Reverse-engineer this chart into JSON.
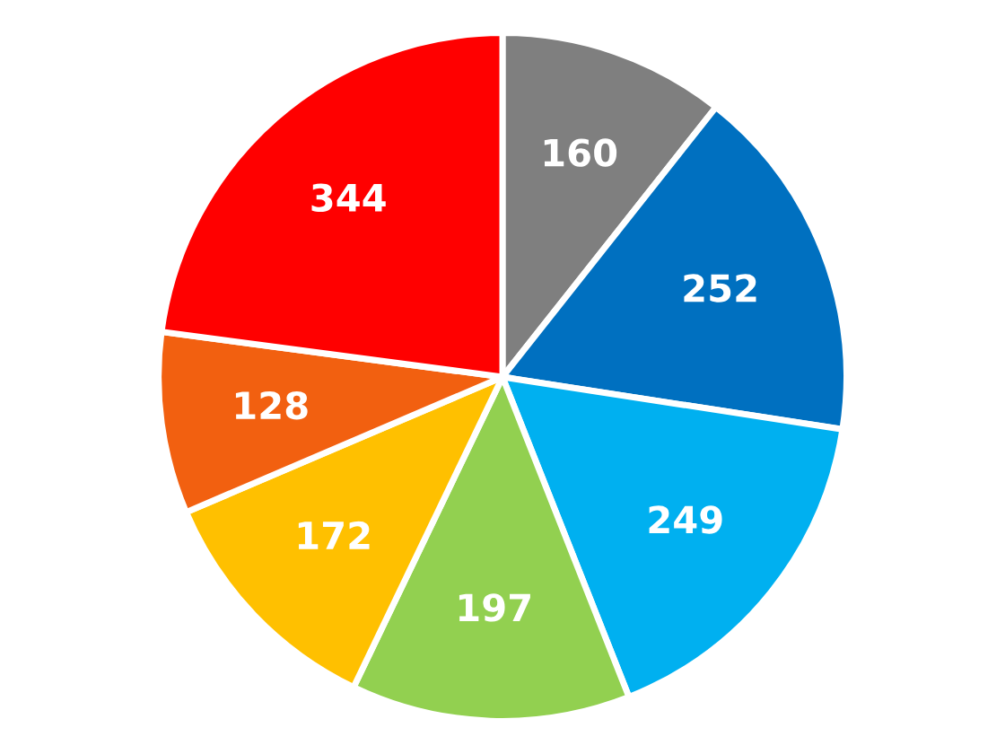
{
  "chart_data": {
    "type": "pie",
    "categories": [
      null,
      null,
      null,
      null,
      null,
      null,
      null
    ],
    "values": [
      160,
      252,
      249,
      197,
      172,
      128,
      344
    ],
    "colors": [
      "#7f7f7f",
      "#0070c0",
      "#00b0f0",
      "#92d050",
      "#ffc000",
      "#f26010",
      "#ff0000"
    ],
    "data_labels": true,
    "legend": false
  }
}
